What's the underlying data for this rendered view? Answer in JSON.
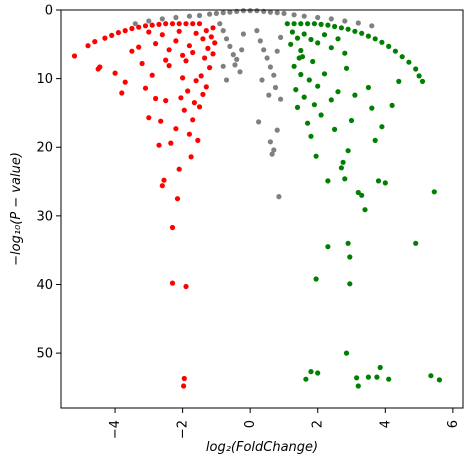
{
  "chart_data": {
    "type": "scatter",
    "title": "",
    "xlabel": "log₂(FoldChange)",
    "ylabel": "−log₁₀(P − value)",
    "xlim": [
      -5.6,
      6.3
    ],
    "ylim": [
      0,
      58
    ],
    "y_inverted": true,
    "grid": false,
    "legend": "none",
    "x_ticks": [
      -4,
      -2,
      0,
      2,
      4,
      6
    ],
    "x_tick_labels": [
      "−4",
      "−2",
      "0",
      "2",
      "4",
      "6"
    ],
    "y_ticks": [
      0,
      10,
      20,
      30,
      40,
      50
    ],
    "y_tick_labels": [
      "0",
      "10",
      "20",
      "30",
      "40",
      "50"
    ],
    "colors": {
      "down": "#ff0000",
      "ns": "#808080",
      "up": "#008000"
    },
    "series": [
      {
        "group": "down",
        "color": "#ff0000",
        "points": [
          [
            -5.2,
            6.7
          ],
          [
            -4.8,
            5.2
          ],
          [
            -4.6,
            4.6
          ],
          [
            -4.5,
            8.6
          ],
          [
            -4.45,
            8.3
          ],
          [
            -4.3,
            4.1
          ],
          [
            -4.1,
            3.7
          ],
          [
            -3.9,
            3.3
          ],
          [
            -3.7,
            3.0
          ],
          [
            -3.5,
            2.7
          ],
          [
            -3.3,
            2.5
          ],
          [
            -3.1,
            2.3
          ],
          [
            -2.9,
            2.2
          ],
          [
            -2.7,
            2.1
          ],
          [
            -2.5,
            2.0
          ],
          [
            -2.3,
            2.0
          ],
          [
            -2.1,
            2.0
          ],
          [
            -1.9,
            2.0
          ],
          [
            -1.7,
            2.0
          ],
          [
            -1.5,
            2.0
          ],
          [
            -4.0,
            9.2
          ],
          [
            -3.8,
            12.1
          ],
          [
            -3.7,
            10.5
          ],
          [
            -3.5,
            6.0
          ],
          [
            -3.3,
            5.4
          ],
          [
            -3.2,
            7.8
          ],
          [
            -3.1,
            11.4
          ],
          [
            -3.0,
            15.7
          ],
          [
            -2.9,
            9.5
          ],
          [
            -2.8,
            12.9
          ],
          [
            -2.7,
            19.7
          ],
          [
            -2.65,
            16.2
          ],
          [
            -2.6,
            25.6
          ],
          [
            -2.55,
            24.8
          ],
          [
            -2.5,
            13.2
          ],
          [
            -2.4,
            8.1
          ],
          [
            -2.35,
            19.4
          ],
          [
            -2.3,
            31.7
          ],
          [
            -2.2,
            17.3
          ],
          [
            -2.15,
            27.5
          ],
          [
            -2.1,
            23.2
          ],
          [
            -2.05,
            12.8
          ],
          [
            -2.0,
            9.9
          ],
          [
            -1.95,
            14.6
          ],
          [
            -1.9,
            7.4
          ],
          [
            -1.85,
            11.8
          ],
          [
            -1.8,
            18.1
          ],
          [
            -1.75,
            21.4
          ],
          [
            -1.7,
            16.0
          ],
          [
            -1.65,
            13.5
          ],
          [
            -1.6,
            10.3
          ],
          [
            -1.55,
            19.0
          ],
          [
            -1.5,
            14.1
          ],
          [
            -1.45,
            9.6
          ],
          [
            -1.4,
            12.3
          ],
          [
            -1.35,
            7.0
          ],
          [
            -1.3,
            11.2
          ],
          [
            -1.25,
            5.6
          ],
          [
            -1.2,
            8.4
          ],
          [
            -1.15,
            3.9
          ],
          [
            -1.1,
            6.4
          ],
          [
            -1.05,
            4.8
          ],
          [
            -2.3,
            39.8
          ],
          [
            -1.9,
            40.3
          ],
          [
            -1.95,
            53.7
          ],
          [
            -1.97,
            54.8
          ],
          [
            -2.2,
            4.5
          ],
          [
            -2.0,
            6.6
          ],
          [
            -1.8,
            5.2
          ],
          [
            -1.6,
            3.4
          ],
          [
            -2.6,
            3.6
          ],
          [
            -2.8,
            4.9
          ],
          [
            -3.0,
            3.2
          ],
          [
            -2.4,
            5.8
          ],
          [
            -1.3,
            3.0
          ],
          [
            -1.1,
            2.6
          ],
          [
            -1.4,
            4.2
          ],
          [
            -1.7,
            6.2
          ],
          [
            -2.1,
            3.1
          ],
          [
            -2.5,
            7.3
          ]
        ]
      },
      {
        "group": "ns",
        "color": "#808080",
        "points": [
          [
            -3.4,
            2.0
          ],
          [
            -3.0,
            1.6
          ],
          [
            -2.6,
            1.3
          ],
          [
            -2.2,
            1.1
          ],
          [
            -1.8,
            0.9
          ],
          [
            -1.5,
            0.8
          ],
          [
            -1.2,
            0.6
          ],
          [
            -1.0,
            0.5
          ],
          [
            -0.8,
            0.4
          ],
          [
            -0.6,
            0.3
          ],
          [
            -0.4,
            0.2
          ],
          [
            -0.2,
            0.1
          ],
          [
            0.0,
            0.1
          ],
          [
            0.2,
            0.1
          ],
          [
            0.4,
            0.2
          ],
          [
            0.6,
            0.3
          ],
          [
            0.8,
            0.4
          ],
          [
            1.0,
            0.5
          ],
          [
            1.3,
            0.7
          ],
          [
            1.6,
            0.9
          ],
          [
            2.0,
            1.1
          ],
          [
            2.4,
            1.3
          ],
          [
            2.8,
            1.6
          ],
          [
            3.2,
            1.9
          ],
          [
            3.6,
            2.3
          ],
          [
            -0.9,
            2.0
          ],
          [
            -0.8,
            3.0
          ],
          [
            -0.7,
            4.2
          ],
          [
            -0.6,
            5.3
          ],
          [
            -0.5,
            6.5
          ],
          [
            -0.45,
            8.0
          ],
          [
            -0.4,
            7.2
          ],
          [
            -0.3,
            9.0
          ],
          [
            -0.25,
            5.8
          ],
          [
            -0.2,
            3.5
          ],
          [
            0.2,
            3.0
          ],
          [
            0.3,
            4.5
          ],
          [
            0.4,
            5.8
          ],
          [
            0.5,
            7.0
          ],
          [
            0.6,
            8.3
          ],
          [
            0.7,
            9.5
          ],
          [
            0.8,
            6.0
          ],
          [
            0.9,
            4.0
          ],
          [
            0.25,
            16.3
          ],
          [
            0.6,
            19.2
          ],
          [
            0.7,
            20.4
          ],
          [
            0.65,
            21.0
          ],
          [
            0.8,
            17.5
          ],
          [
            0.85,
            27.2
          ],
          [
            -0.7,
            10.2
          ],
          [
            -0.8,
            8.2
          ],
          [
            0.75,
            11.3
          ],
          [
            0.9,
            13.0
          ],
          [
            0.55,
            12.4
          ],
          [
            0.35,
            10.2
          ]
        ]
      },
      {
        "group": "up",
        "color": "#008000",
        "points": [
          [
            1.1,
            2.0
          ],
          [
            1.3,
            2.0
          ],
          [
            1.5,
            2.0
          ],
          [
            1.7,
            2.0
          ],
          [
            1.9,
            2.0
          ],
          [
            2.1,
            2.1
          ],
          [
            2.3,
            2.2
          ],
          [
            2.5,
            2.4
          ],
          [
            2.7,
            2.6
          ],
          [
            2.9,
            2.8
          ],
          [
            3.1,
            3.1
          ],
          [
            3.3,
            3.4
          ],
          [
            3.5,
            3.8
          ],
          [
            3.7,
            4.2
          ],
          [
            3.9,
            4.7
          ],
          [
            4.1,
            5.3
          ],
          [
            4.3,
            6.0
          ],
          [
            4.5,
            6.8
          ],
          [
            4.7,
            7.6
          ],
          [
            4.9,
            8.6
          ],
          [
            5.0,
            9.6
          ],
          [
            5.1,
            10.4
          ],
          [
            1.2,
            5.0
          ],
          [
            1.3,
            8.2
          ],
          [
            1.35,
            11.6
          ],
          [
            1.4,
            14.2
          ],
          [
            1.5,
            9.4
          ],
          [
            1.55,
            6.8
          ],
          [
            1.6,
            12.7
          ],
          [
            1.7,
            16.5
          ],
          [
            1.75,
            10.2
          ],
          [
            1.8,
            18.4
          ],
          [
            1.85,
            7.5
          ],
          [
            1.9,
            13.8
          ],
          [
            1.95,
            21.3
          ],
          [
            2.0,
            11.1
          ],
          [
            2.1,
            15.3
          ],
          [
            2.2,
            9.3
          ],
          [
            2.3,
            24.9
          ],
          [
            2.4,
            13.1
          ],
          [
            2.5,
            17.4
          ],
          [
            2.6,
            11.9
          ],
          [
            2.7,
            23.0
          ],
          [
            2.75,
            22.2
          ],
          [
            2.8,
            24.6
          ],
          [
            2.85,
            8.5
          ],
          [
            2.9,
            20.5
          ],
          [
            3.0,
            16.1
          ],
          [
            3.1,
            12.4
          ],
          [
            3.2,
            26.6
          ],
          [
            3.3,
            27.0
          ],
          [
            3.4,
            29.1
          ],
          [
            3.5,
            11.3
          ],
          [
            3.6,
            14.3
          ],
          [
            3.7,
            19.0
          ],
          [
            3.8,
            24.9
          ],
          [
            3.9,
            17.0
          ],
          [
            4.0,
            25.2
          ],
          [
            4.2,
            13.9
          ],
          [
            4.4,
            10.4
          ],
          [
            2.3,
            34.5
          ],
          [
            2.9,
            34.0
          ],
          [
            2.95,
            36.0
          ],
          [
            4.9,
            34.0
          ],
          [
            1.95,
            39.2
          ],
          [
            2.95,
            39.9
          ],
          [
            1.8,
            52.7
          ],
          [
            2.0,
            52.9
          ],
          [
            1.65,
            53.8
          ],
          [
            2.85,
            50.0
          ],
          [
            3.15,
            53.6
          ],
          [
            3.2,
            54.8
          ],
          [
            3.5,
            53.5
          ],
          [
            3.75,
            53.5
          ],
          [
            3.85,
            52.1
          ],
          [
            4.1,
            53.8
          ],
          [
            5.35,
            53.3
          ],
          [
            5.6,
            53.9
          ],
          [
            5.45,
            26.5
          ],
          [
            1.4,
            4.1
          ],
          [
            1.6,
            3.5
          ],
          [
            2.0,
            4.8
          ],
          [
            2.4,
            5.5
          ],
          [
            2.8,
            6.3
          ],
          [
            1.5,
            5.9
          ],
          [
            1.8,
            4.3
          ],
          [
            2.2,
            3.6
          ],
          [
            1.25,
            3.2
          ],
          [
            1.45,
            7.0
          ],
          [
            2.6,
            4.2
          ]
        ]
      }
    ]
  }
}
